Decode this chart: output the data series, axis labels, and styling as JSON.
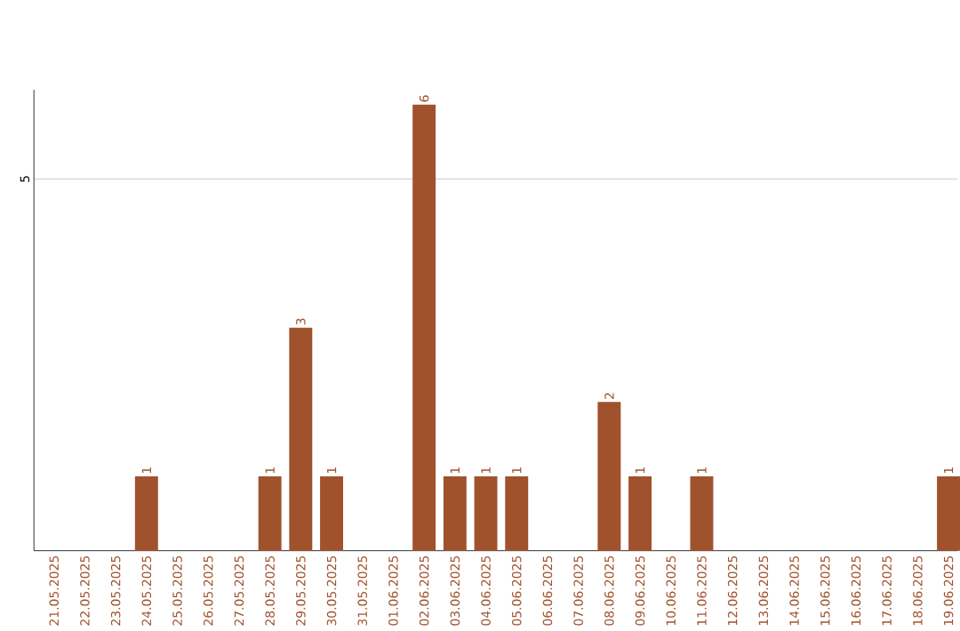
{
  "chart_data": {
    "type": "bar",
    "color": "#a0522d",
    "categories": [
      "21.05.2025",
      "22.05.2025",
      "23.05.2025",
      "24.05.2025",
      "25.05.2025",
      "26.05.2025",
      "27.05.2025",
      "28.05.2025",
      "29.05.2025",
      "30.05.2025",
      "31.05.2025",
      "01.06.2025",
      "02.06.2025",
      "03.06.2025",
      "04.06.2025",
      "05.06.2025",
      "06.06.2025",
      "07.06.2025",
      "08.06.2025",
      "09.06.2025",
      "10.06.2025",
      "11.06.2025",
      "12.06.2025",
      "13.06.2025",
      "14.06.2025",
      "15.06.2025",
      "16.06.2025",
      "17.06.2025",
      "18.06.2025",
      "19.06.2025"
    ],
    "values": [
      0,
      0,
      0,
      1,
      0,
      0,
      0,
      1,
      3,
      1,
      0,
      0,
      6,
      1,
      1,
      1,
      0,
      0,
      2,
      1,
      0,
      1,
      0,
      0,
      0,
      0,
      0,
      0,
      0,
      1
    ],
    "value_labels": [
      null,
      null,
      null,
      "1",
      null,
      null,
      null,
      "1",
      "3",
      "1",
      null,
      null,
      "6",
      "1",
      "1",
      "1",
      null,
      null,
      "2",
      "1",
      null,
      "1",
      null,
      null,
      null,
      null,
      null,
      null,
      null,
      "1"
    ],
    "ylim": [
      0,
      6.2
    ],
    "yticks": [
      5
    ],
    "grid": "y"
  }
}
